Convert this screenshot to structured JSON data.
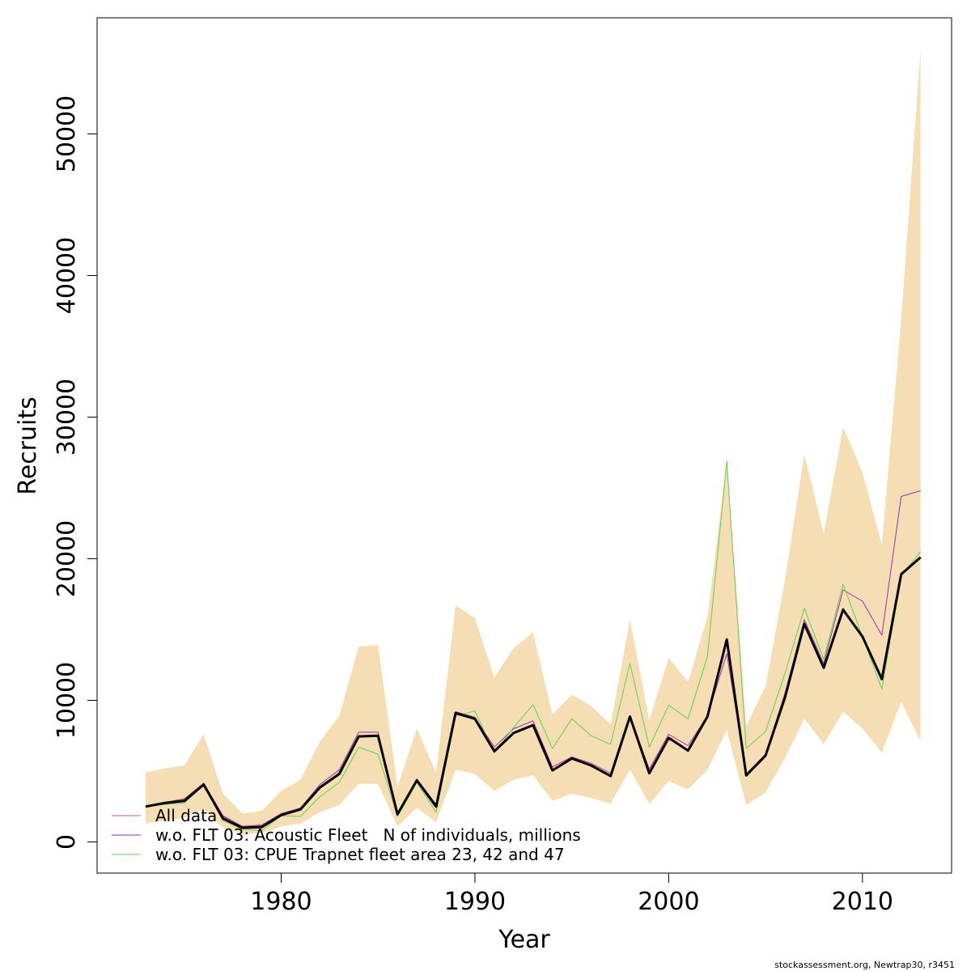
{
  "chart_data": {
    "type": "line",
    "xlabel": "Year",
    "ylabel": "Recruits",
    "xlim": [
      1970.5,
      2014.6
    ],
    "ylim": [
      -2200,
      58200
    ],
    "x_ticks": [
      1980,
      1990,
      2000,
      2010
    ],
    "x_tick_labels": [
      "1980",
      "1990",
      "2000",
      "2010"
    ],
    "y_ticks": [
      0,
      10000,
      20000,
      30000,
      40000,
      50000
    ],
    "y_tick_labels": [
      "0",
      "10000",
      "20000",
      "30000",
      "40000",
      "50000"
    ],
    "grid": false,
    "legend_position": "bottom-left",
    "x": [
      1973,
      1974,
      1975,
      1976,
      1977,
      1978,
      1979,
      1980,
      1981,
      1982,
      1983,
      1984,
      1985,
      1986,
      1987,
      1988,
      1989,
      1990,
      1991,
      1992,
      1993,
      1994,
      1995,
      1996,
      1997,
      1998,
      1999,
      2000,
      2001,
      2002,
      2003,
      2004,
      2005,
      2006,
      2007,
      2008,
      2009,
      2010,
      2011,
      2012,
      2013
    ],
    "confidence_band": {
      "color": "#F5DEB3",
      "lower": [
        1300,
        1500,
        1700,
        2300,
        1000,
        600,
        600,
        1100,
        1300,
        2100,
        2600,
        4100,
        4100,
        1100,
        2400,
        1400,
        5100,
        4800,
        3600,
        4400,
        4700,
        2900,
        3400,
        3100,
        2700,
        5100,
        2700,
        4300,
        3700,
        5100,
        7900,
        2600,
        3500,
        5900,
        8700,
        6900,
        9200,
        8000,
        6300,
        9900,
        7100
      ],
      "upper": [
        4900,
        5200,
        5400,
        7600,
        3400,
        2000,
        2200,
        3600,
        4400,
        7100,
        8900,
        13800,
        13900,
        3900,
        8000,
        4900,
        16700,
        15800,
        11600,
        13700,
        14800,
        9000,
        10400,
        9600,
        8300,
        15700,
        8600,
        13000,
        11300,
        15900,
        26900,
        8200,
        11000,
        18500,
        27400,
        21800,
        29300,
        26100,
        21000,
        36900,
        56000
      ]
    },
    "series": [
      {
        "name": "All data",
        "color": "#DF536B",
        "width": 1,
        "values": [
          2550,
          2750,
          2900,
          4100,
          1800,
          1050,
          1150,
          1950,
          2350,
          3900,
          4900,
          7500,
          7550,
          2000,
          4400,
          2600,
          9150,
          8750,
          6500,
          7750,
          8300,
          5100,
          5950,
          5450,
          4700,
          8900,
          4900,
          7400,
          6500,
          8900,
          14300,
          4700,
          6150,
          10300,
          15500,
          12300,
          16500,
          14500,
          11500,
          19000,
          20100
        ]
      },
      {
        "name": "w.o. FLT 03: Acoustic Fleet   N of individuals, millions",
        "color": "#9E2BB8",
        "width": 1,
        "values": [
          2550,
          2800,
          3050,
          4150,
          1850,
          1100,
          1200,
          2000,
          2400,
          4050,
          5100,
          7750,
          7750,
          2050,
          4450,
          2650,
          9200,
          8800,
          6700,
          8000,
          8550,
          5300,
          6000,
          5550,
          4850,
          8900,
          5150,
          7600,
          6800,
          8900,
          13300,
          4800,
          6200,
          10500,
          15700,
          12600,
          17800,
          17000,
          14600,
          24400,
          24800
        ]
      },
      {
        "name": "w.o. FLT 03: CPUE Trapnet fleet area 23, 42 and 47",
        "color": "#61D04F",
        "width": 1,
        "values": [
          2500,
          2650,
          2750,
          4000,
          1500,
          900,
          800,
          1850,
          1800,
          3200,
          4200,
          6700,
          6200,
          1800,
          4200,
          2100,
          8900,
          9250,
          6300,
          8100,
          9700,
          6600,
          8700,
          7500,
          6900,
          12600,
          6700,
          9650,
          8700,
          13100,
          26900,
          6600,
          7800,
          11900,
          16500,
          12900,
          18200,
          14500,
          10800,
          18800,
          20500
        ]
      }
    ],
    "central": {
      "color": "#000000",
      "width": 3,
      "values": [
        2500,
        2750,
        2900,
        4050,
        1650,
        1000,
        1050,
        1900,
        2300,
        3850,
        4800,
        7450,
        7500,
        1950,
        4350,
        2500,
        9100,
        8700,
        6400,
        7700,
        8250,
        5050,
        5900,
        5400,
        4650,
        8850,
        4850,
        7350,
        6450,
        8850,
        14300,
        4700,
        6100,
        10200,
        15400,
        12300,
        16400,
        14500,
        11500,
        18900,
        20100
      ]
    }
  },
  "footer": "stockassessment.org, Newtrap30, r3451"
}
